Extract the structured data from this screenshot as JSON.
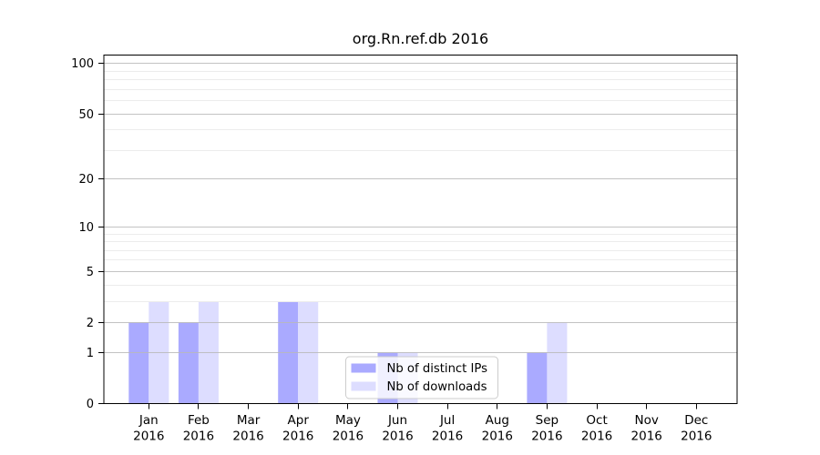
{
  "chart_data": {
    "type": "bar",
    "title": "org.Rn.ref.db 2016",
    "y_scale": "log1p",
    "year": "2016",
    "months": [
      "Jan",
      "Feb",
      "Mar",
      "Apr",
      "May",
      "Jun",
      "Jul",
      "Aug",
      "Sep",
      "Oct",
      "Nov",
      "Dec"
    ],
    "categories": [
      "Jan 2016",
      "Feb 2016",
      "Mar 2016",
      "Apr 2016",
      "May 2016",
      "Jun 2016",
      "Jul 2016",
      "Aug 2016",
      "Sep 2016",
      "Oct 2016",
      "Nov 2016",
      "Dec 2016"
    ],
    "series": [
      {
        "name": "Nb of distinct IPs",
        "color": "#aaaaff",
        "values": [
          2,
          2,
          0,
          3,
          0,
          1,
          0,
          0,
          1,
          0,
          0,
          0
        ]
      },
      {
        "name": "Nb of downloads",
        "color": "#ddddff",
        "values": [
          3,
          3,
          0,
          3,
          0,
          1,
          0,
          0,
          2,
          0,
          0,
          0
        ]
      }
    ],
    "y_major_ticks": [
      0,
      1,
      2,
      5,
      10,
      20,
      50,
      100
    ],
    "y_minor_gridlines": [
      3,
      4,
      6,
      7,
      8,
      9,
      30,
      40,
      60,
      70,
      80,
      90
    ],
    "ylim": [
      0,
      113
    ],
    "xlabel": "",
    "ylabel": "",
    "grid": true,
    "legend_position": "lower center"
  }
}
